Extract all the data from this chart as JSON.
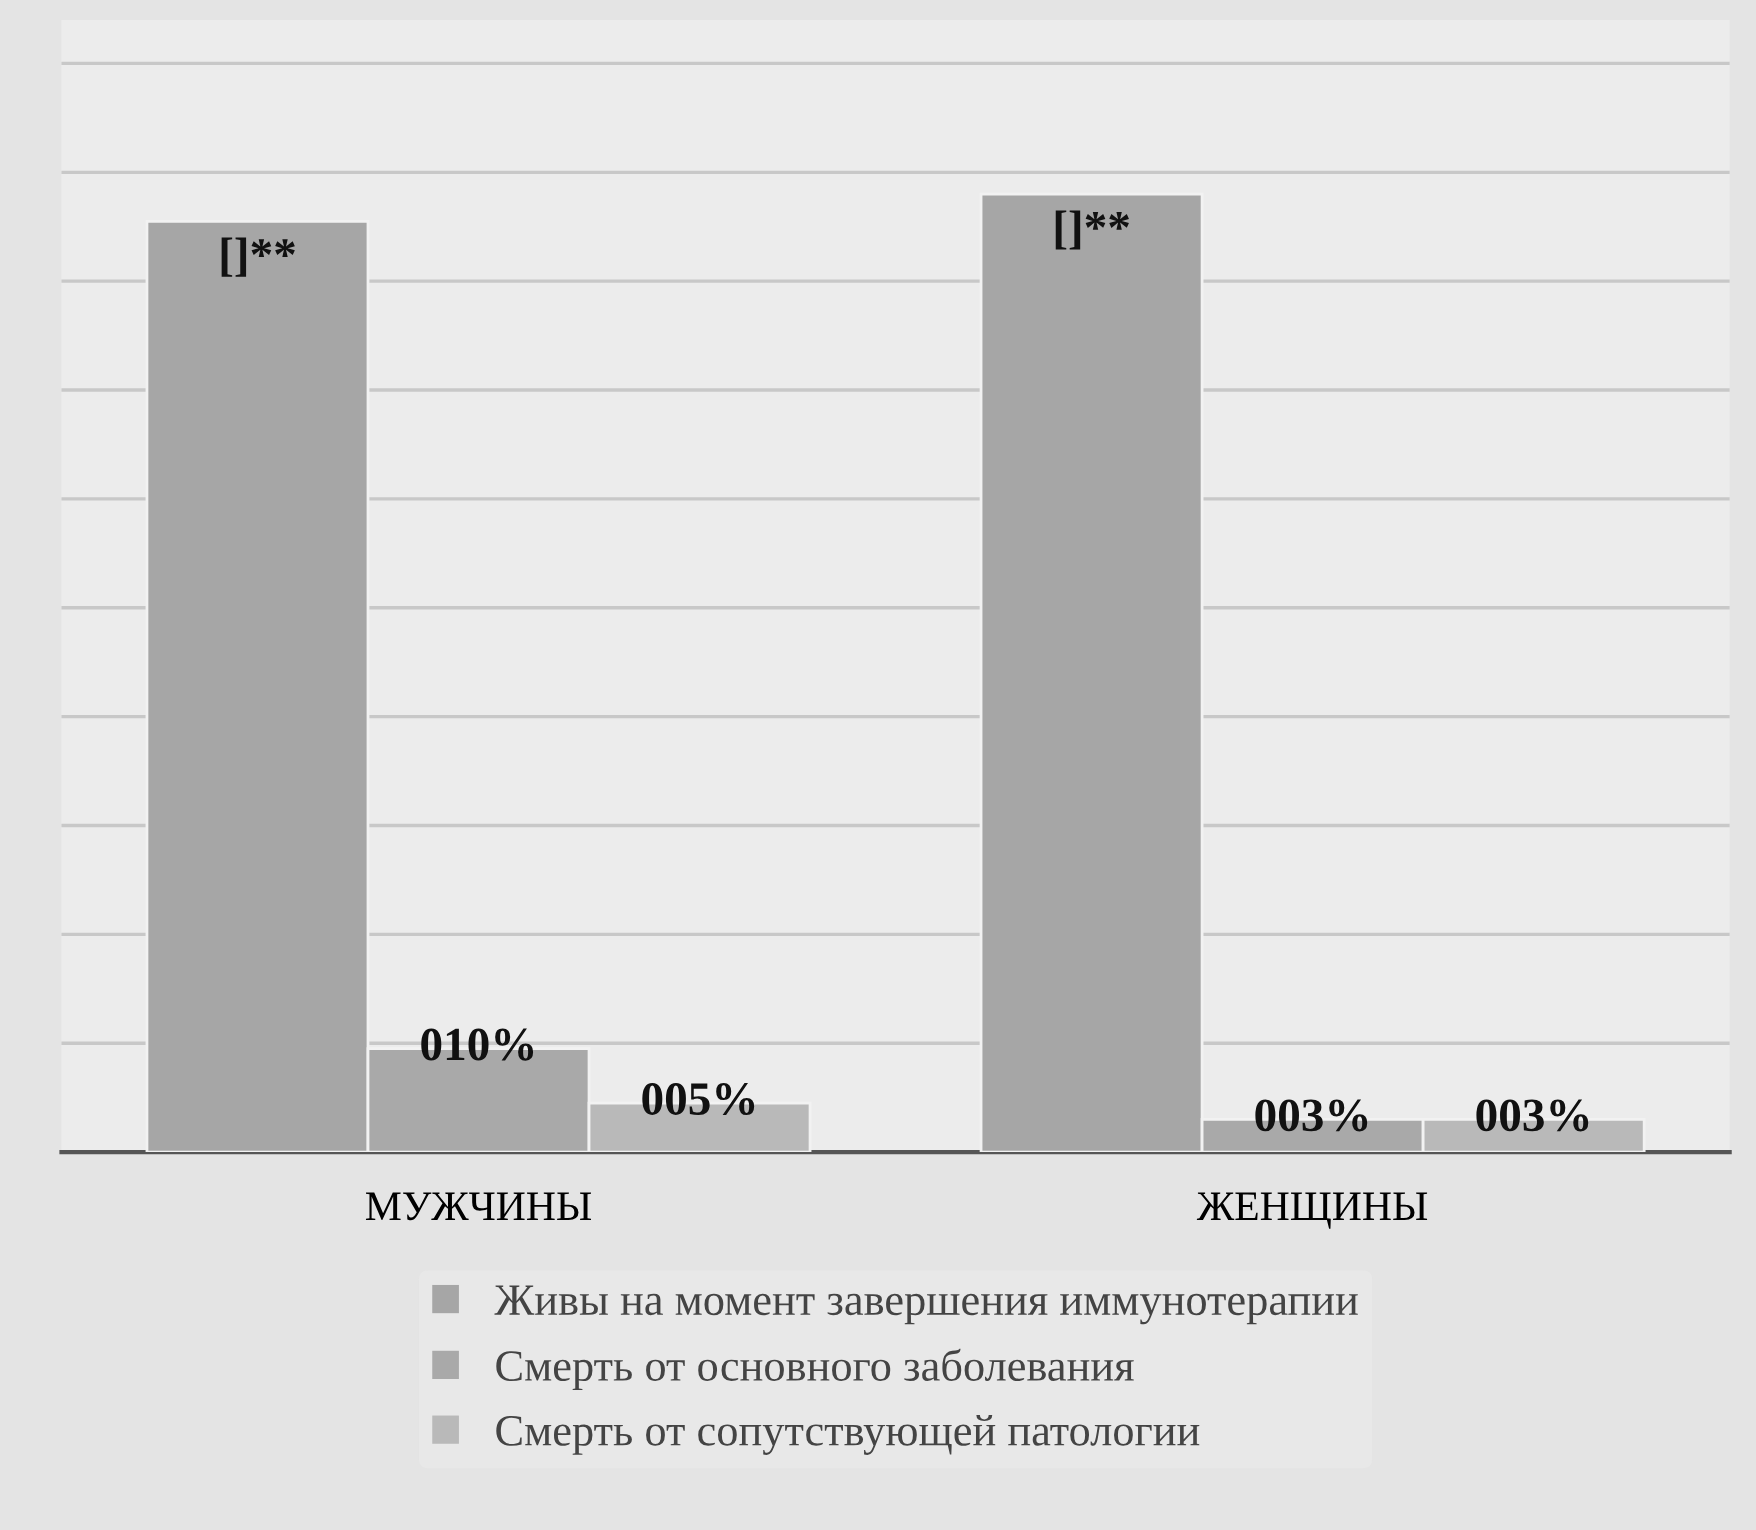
{
  "chart_data": {
    "type": "bar",
    "categories": [
      "МУЖЧИНЫ",
      "ЖЕНЩИНЫ"
    ],
    "series": [
      {
        "name": "Живы на момент завершения иммунотерапии",
        "color": "#a6a6a6",
        "values": [
          85.5,
          88
        ],
        "value_labels": [
          "[]**",
          "[]**"
        ]
      },
      {
        "name": "Смерть от основного заболевания",
        "color": "#a9a9a9",
        "values": [
          9.5,
          3
        ],
        "value_labels": [
          "010%",
          "003%"
        ]
      },
      {
        "name": "Смерть от сопутствующей патологии",
        "color": "#b9b9b9",
        "values": [
          4.5,
          3
        ],
        "value_labels": [
          "005%",
          "003%"
        ]
      }
    ],
    "ylim": [
      0,
      104
    ],
    "yticks": [
      {
        "value": 0,
        "label": null
      },
      {
        "value": 10,
        "label": null
      },
      {
        "value": 20,
        "label": null
      },
      {
        "value": 30,
        "label": null
      },
      {
        "value": 40,
        "label": null
      },
      {
        "value": 50,
        "label": null
      },
      {
        "value": 60,
        "label": null
      },
      {
        "value": 70,
        "label": null
      },
      {
        "value": 80,
        "label": null
      },
      {
        "value": 90,
        "label": null
      },
      {
        "value": 100,
        "label": null
      }
    ],
    "grid": "y",
    "legend": "bottom",
    "tick_labels": "x"
  }
}
